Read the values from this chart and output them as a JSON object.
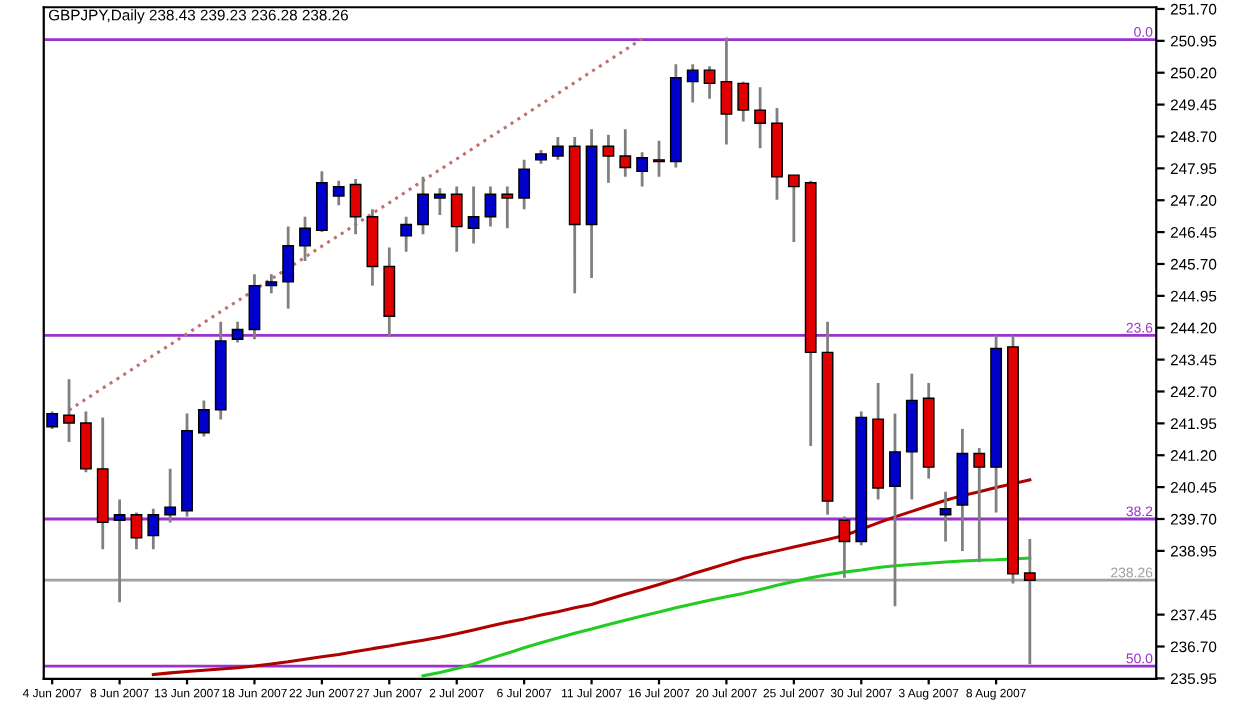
{
  "chart_data": {
    "type": "candlestick",
    "title": "GBPJPY,Daily 238.43 239.23 236.28 238.26",
    "categories": [
      "4 Jun 2007",
      null,
      null,
      null,
      "8 Jun 2007",
      null,
      null,
      null,
      "13 Jun 2007",
      null,
      null,
      null,
      "18 Jun 2007",
      null,
      null,
      null,
      "22 Jun 2007",
      null,
      null,
      null,
      "27 Jun 2007",
      null,
      null,
      null,
      "2 Jul 2007",
      null,
      null,
      null,
      "6 Jul 2007",
      null,
      null,
      null,
      "11 Jul 2007",
      null,
      null,
      null,
      "16 Jul 2007",
      null,
      null,
      null,
      "20 Jul 2007",
      null,
      null,
      null,
      "25 Jul 2007",
      null,
      null,
      null,
      "30 Jul 2007",
      null,
      null,
      null,
      "3 Aug 2007",
      null,
      null,
      null,
      "8 Aug 2007",
      null,
      null
    ],
    "ohlc": [
      [
        241.87,
        242.23,
        241.82,
        242.18
      ],
      [
        242.14,
        242.99,
        241.51,
        241.96
      ],
      [
        241.96,
        242.23,
        240.8,
        240.88
      ],
      [
        240.88,
        242.09,
        238.99,
        239.62
      ],
      [
        239.67,
        240.16,
        237.74,
        239.8
      ],
      [
        239.8,
        239.85,
        238.99,
        239.26
      ],
      [
        239.31,
        239.94,
        238.99,
        239.8
      ],
      [
        239.8,
        240.88,
        239.62,
        239.98
      ],
      [
        239.89,
        242.18,
        239.76,
        241.78
      ],
      [
        241.73,
        242.49,
        241.64,
        242.27
      ],
      [
        242.27,
        244.34,
        242.04,
        243.89
      ],
      [
        243.93,
        244.34,
        243.85,
        244.16
      ],
      [
        244.16,
        245.46,
        243.93,
        245.19
      ],
      [
        245.19,
        245.46,
        245.01,
        245.28
      ],
      [
        245.28,
        246.58,
        244.65,
        246.13
      ],
      [
        246.13,
        246.81,
        245.77,
        246.54
      ],
      [
        246.49,
        247.88,
        246.45,
        247.61
      ],
      [
        247.3,
        247.66,
        247.08,
        247.52
      ],
      [
        247.57,
        247.7,
        246.4,
        246.81
      ],
      [
        246.81,
        246.99,
        245.19,
        245.64
      ],
      [
        245.64,
        246.09,
        243.98,
        244.47
      ],
      [
        246.36,
        246.81,
        245.99,
        246.63
      ],
      [
        246.63,
        247.75,
        246.4,
        247.34
      ],
      [
        247.25,
        247.48,
        246.85,
        247.34
      ],
      [
        247.34,
        247.52,
        245.99,
        246.58
      ],
      [
        246.54,
        247.52,
        246.18,
        246.81
      ],
      [
        246.81,
        247.52,
        246.58,
        247.34
      ],
      [
        247.34,
        247.52,
        246.54,
        247.25
      ],
      [
        247.25,
        248.15,
        246.99,
        247.93
      ],
      [
        248.15,
        248.38,
        248.06,
        248.29
      ],
      [
        248.24,
        248.69,
        248.15,
        248.47
      ],
      [
        248.47,
        248.69,
        245.01,
        246.63
      ],
      [
        246.63,
        248.87,
        245.37,
        248.47
      ],
      [
        248.47,
        248.74,
        247.61,
        248.24
      ],
      [
        248.24,
        248.87,
        247.75,
        247.97
      ],
      [
        247.88,
        248.33,
        247.52,
        248.2
      ],
      [
        248.15,
        248.6,
        247.75,
        248.11
      ],
      [
        248.11,
        250.4,
        247.97,
        250.08
      ],
      [
        249.99,
        250.4,
        249.5,
        250.26
      ],
      [
        250.26,
        250.35,
        249.59,
        249.95
      ],
      [
        249.99,
        251.03,
        248.51,
        249.23
      ],
      [
        249.95,
        249.99,
        249.05,
        249.32
      ],
      [
        249.32,
        249.86,
        248.42,
        249.01
      ],
      [
        249.01,
        249.37,
        247.21,
        247.75
      ],
      [
        247.79,
        247.79,
        246.22,
        247.52
      ],
      [
        247.61,
        247.66,
        241.42,
        243.62
      ],
      [
        243.62,
        244.34,
        239.8,
        240.12
      ],
      [
        239.67,
        239.76,
        238.32,
        239.17
      ],
      [
        239.17,
        242.23,
        239.08,
        242.09
      ],
      [
        242.05,
        242.9,
        240.16,
        240.43
      ],
      [
        240.47,
        242.18,
        237.65,
        241.28
      ],
      [
        241.28,
        243.12,
        240.16,
        242.49
      ],
      [
        242.54,
        242.9,
        240.65,
        240.92
      ],
      [
        239.8,
        240.34,
        239.17,
        239.94
      ],
      [
        240.03,
        241.82,
        238.95,
        241.24
      ],
      [
        241.24,
        241.37,
        238.68,
        240.92
      ],
      [
        240.92,
        244.02,
        239.85,
        243.71
      ],
      [
        243.75,
        244.02,
        238.18,
        238.41
      ],
      [
        238.43,
        239.23,
        236.28,
        238.26
      ]
    ],
    "colors": [
      "#0000cc",
      "#e00000",
      "#e00000",
      "#e00000",
      "#0000cc",
      "#e00000",
      "#0000cc",
      "#0000cc",
      "#0000cc",
      "#0000cc",
      "#0000cc",
      "#0000cc",
      "#0000cc",
      "#0000cc",
      "#0000cc",
      "#0000cc",
      "#0000cc",
      "#0000cc",
      "#e00000",
      "#e00000",
      "#e00000",
      "#0000cc",
      "#0000cc",
      "#0000cc",
      "#e00000",
      "#0000cc",
      "#0000cc",
      "#e00000",
      "#0000cc",
      "#0000cc",
      "#0000cc",
      "#e00000",
      "#0000cc",
      "#e00000",
      "#e00000",
      "#0000cc",
      "#e00000",
      "#0000cc",
      "#0000cc",
      "#e00000",
      "#e00000",
      "#e00000",
      "#e00000",
      "#e00000",
      "#e00000",
      "#e00000",
      "#e00000",
      "#e00000",
      "#0000cc",
      "#e00000",
      "#0000cc",
      "#0000cc",
      "#e00000",
      "#0000cc",
      "#0000cc",
      "#e00000",
      "#0000cc",
      "#e00000",
      "#e00000"
    ],
    "series": [
      {
        "type": "line",
        "color": "#b00000",
        "line_style": "solid",
        "values": [
          null,
          null,
          null,
          null,
          null,
          null,
          236.04,
          236.08,
          236.11,
          236.14,
          236.17,
          236.2,
          236.24,
          236.29,
          236.34,
          236.4,
          236.46,
          236.51,
          236.58,
          236.65,
          236.71,
          236.78,
          236.85,
          236.92,
          237.0,
          237.09,
          237.18,
          237.27,
          237.35,
          237.44,
          237.52,
          237.61,
          237.69,
          237.81,
          237.93,
          238.04,
          238.16,
          238.28,
          238.41,
          238.53,
          238.65,
          238.77,
          238.86,
          238.95,
          239.04,
          239.13,
          239.22,
          239.31,
          239.46,
          239.61,
          239.75,
          239.88,
          240.01,
          240.14,
          240.25,
          240.34,
          240.44,
          240.53,
          240.62
        ]
      },
      {
        "type": "line",
        "color": "#22cc22",
        "line_style": "solid",
        "values": [
          null,
          null,
          null,
          null,
          null,
          null,
          null,
          null,
          null,
          null,
          null,
          null,
          null,
          null,
          null,
          null,
          null,
          null,
          null,
          null,
          null,
          null,
          236.01,
          236.09,
          236.18,
          236.29,
          236.42,
          236.54,
          236.67,
          236.79,
          236.9,
          237.01,
          237.11,
          237.22,
          237.32,
          237.42,
          237.51,
          237.61,
          237.7,
          237.79,
          237.87,
          237.95,
          238.04,
          238.14,
          238.23,
          238.32,
          238.39,
          238.45,
          238.5,
          238.56,
          238.6,
          238.63,
          238.66,
          238.69,
          238.71,
          238.73,
          238.74,
          238.76,
          238.78
        ]
      },
      {
        "type": "line",
        "color": "#c07070",
        "line_style": "dotted",
        "values": [
          null,
          242.26,
          242.52,
          242.78,
          243.03,
          243.29,
          243.55,
          243.8,
          244.06,
          244.32,
          244.58,
          244.83,
          245.09,
          245.35,
          245.6,
          245.86,
          246.12,
          246.37,
          246.63,
          246.89,
          247.14,
          247.4,
          247.66,
          247.92,
          248.17,
          248.43,
          248.69,
          248.94,
          249.2,
          249.46,
          249.71,
          249.97,
          250.23,
          250.48,
          250.74,
          251.0,
          null,
          null,
          null,
          null,
          null,
          null,
          null,
          null,
          null,
          null,
          null,
          null,
          null,
          null,
          null,
          null,
          null,
          null,
          null,
          null,
          null,
          null,
          null
        ]
      }
    ],
    "annotations": [
      {
        "text": "0.0",
        "y": 250.98
      },
      {
        "text": "23.6",
        "y": 244.02
      },
      {
        "text": "38.2",
        "y": 239.7
      },
      {
        "text": "50.0",
        "y": 236.24
      }
    ],
    "ref_lines": [
      {
        "axis": "y",
        "value": 250.98,
        "color": "#9933cc",
        "line_style": "solid"
      },
      {
        "axis": "y",
        "value": 244.02,
        "color": "#9933cc",
        "line_style": "solid"
      },
      {
        "axis": "y",
        "value": 239.7,
        "color": "#9933cc",
        "line_style": "solid"
      },
      {
        "axis": "y",
        "value": 236.24,
        "color": "#9933cc",
        "line_style": "solid"
      },
      {
        "axis": "y",
        "value": 238.26,
        "label": "238.26",
        "color": "#a0a0a0",
        "line_style": "solid"
      }
    ],
    "ylim": [
      235.94,
      251.74
    ],
    "yticks": [
      {
        "value": 235.95,
        "label": "235.95"
      },
      {
        "value": 236.7,
        "label": "236.70"
      },
      {
        "value": 237.45,
        "label": "237.45"
      },
      {
        "value": 238.95,
        "label": "238.95"
      },
      {
        "value": 239.7,
        "label": "239.70"
      },
      {
        "value": 240.45,
        "label": "240.45"
      },
      {
        "value": 241.2,
        "label": "241.20"
      },
      {
        "value": 241.95,
        "label": "241.95"
      },
      {
        "value": 242.7,
        "label": "242.70"
      },
      {
        "value": 243.45,
        "label": "243.45"
      },
      {
        "value": 244.2,
        "label": "244.20"
      },
      {
        "value": 244.95,
        "label": "244.95"
      },
      {
        "value": 245.7,
        "label": "245.70"
      },
      {
        "value": 246.45,
        "label": "246.45"
      },
      {
        "value": 247.2,
        "label": "247.20"
      },
      {
        "value": 247.95,
        "label": "247.95"
      },
      {
        "value": 248.7,
        "label": "248.70"
      },
      {
        "value": 249.45,
        "label": "249.45"
      },
      {
        "value": 250.2,
        "label": "250.20"
      },
      {
        "value": 250.95,
        "label": "250.95"
      },
      {
        "value": 251.7,
        "label": "251.70"
      }
    ],
    "grid": false,
    "legend": false
  }
}
